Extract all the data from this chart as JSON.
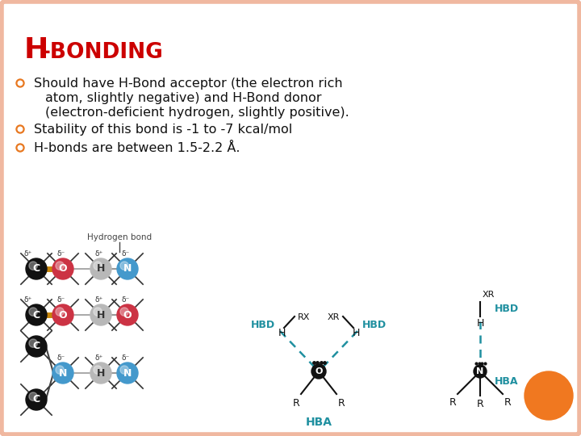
{
  "title_color": "#cc0000",
  "bg_color": "#ffffff",
  "border_color": "#f0b8a0",
  "bullet_color": "#e87820",
  "text_color": "#111111",
  "hbd_hba_color": "#2090a0",
  "orange_circle_color": "#f07820",
  "atom_colors": {
    "C": "#111111",
    "O": "#cc3344",
    "H": "#c0c0c0",
    "N": "#4499cc"
  },
  "bullet1a": "Should have H-Bond acceptor (the electron rich",
  "bullet1b": "atom, slightly negative) and H-Bond donor",
  "bullet1c": "(electron-deficient hydrogen, slightly positive).",
  "bullet2": "Stability of this bond is -1 to -7 kcal/mol",
  "bullet3": "H-bonds are between 1.5-2.2 Å."
}
